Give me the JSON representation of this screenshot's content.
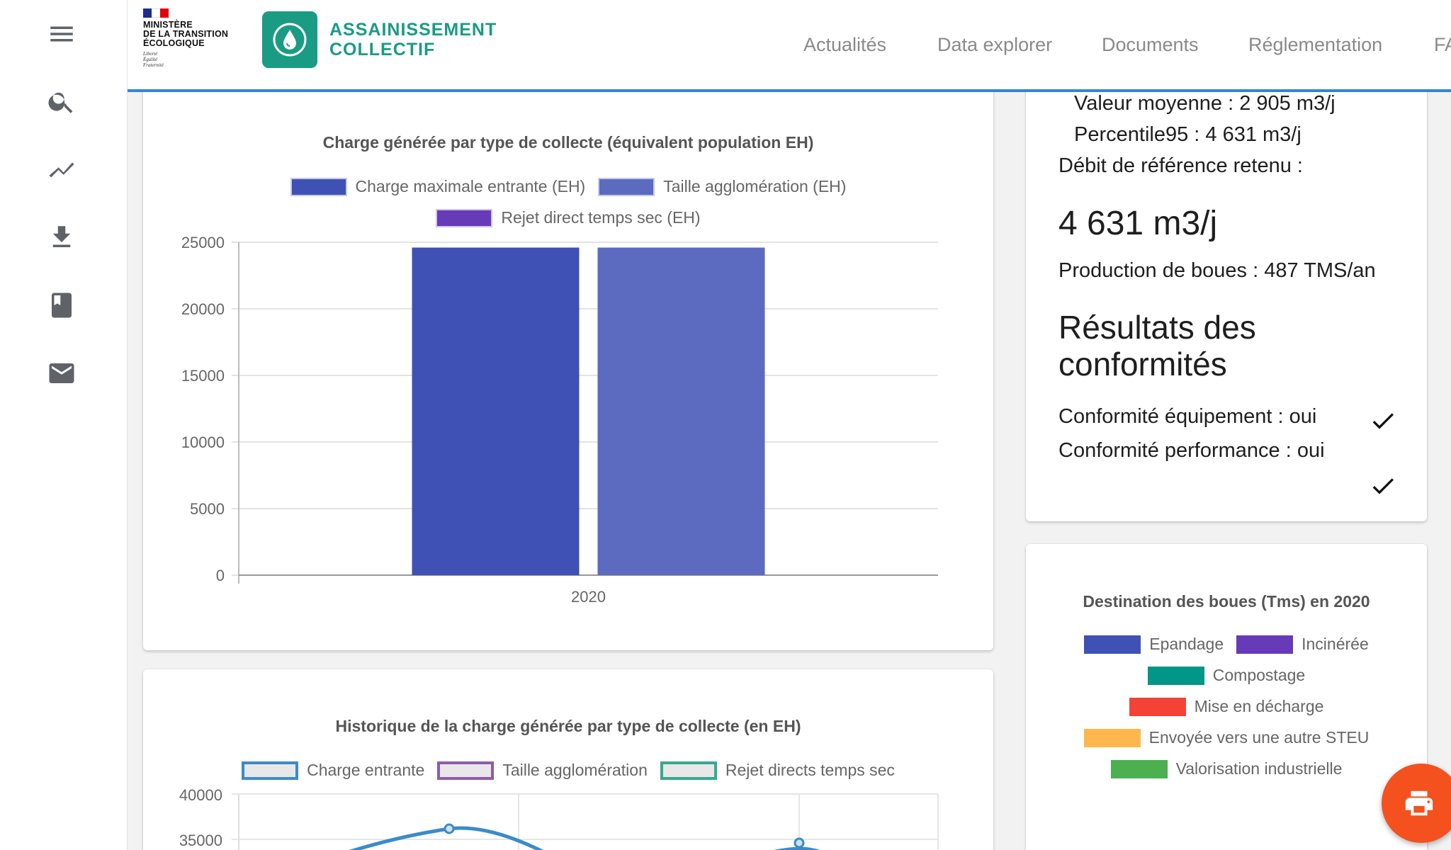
{
  "sidebar": {
    "items": [
      {
        "name": "menu",
        "icon": "menu-icon"
      },
      {
        "name": "search",
        "icon": "search-icon"
      },
      {
        "name": "trend",
        "icon": "trending-up-icon"
      },
      {
        "name": "download",
        "icon": "download-icon"
      },
      {
        "name": "book",
        "icon": "book-icon"
      },
      {
        "name": "mail",
        "icon": "mail-icon"
      }
    ]
  },
  "header": {
    "ministry_lines": [
      "MINISTÈRE",
      "DE LA TRANSITION",
      "ÉCOLOGIQUE"
    ],
    "motto": [
      "Liberté",
      "Égalité",
      "Fraternité"
    ],
    "brand_lines": [
      "ASSAINISSEMENT",
      "COLLECTIF"
    ],
    "nav": [
      "Actualités",
      "Data explorer",
      "Documents",
      "Réglementation",
      "FAQ"
    ]
  },
  "colors": {
    "brand_green": "#1a9b84",
    "header_rule": "#2f86d6",
    "fab": "#f4511e"
  },
  "chart_charge": {
    "chart_data": {
      "type": "bar",
      "title": "Charge générée par type de collecte (équivalent population EH)",
      "categories": [
        "2020"
      ],
      "series": [
        {
          "name": "Charge maximale entrante (EH)",
          "color": "#3f51b5",
          "values": [
            24600
          ]
        },
        {
          "name": "Taille agglomération (EH)",
          "color": "#5c6bc0",
          "values": [
            24600
          ]
        },
        {
          "name": "Rejet direct temps sec (EH)",
          "color": "#673ab7",
          "values": [
            0
          ]
        }
      ],
      "yticks": [
        "25000",
        "20000",
        "15000",
        "10000",
        "5000",
        "0"
      ],
      "ylim": [
        0,
        25000
      ],
      "grid": true,
      "legend": "top"
    }
  },
  "chart_hist": {
    "chart_data": {
      "type": "line",
      "title": "Historique de la charge générée par type de collecte (en EH)",
      "series": [
        {
          "name": "Charge entrante",
          "color": "#3b8bc9"
        },
        {
          "name": "Taille agglomération",
          "color": "#8e5ca8"
        },
        {
          "name": "Rejet directs temps sec",
          "color": "#38a88f"
        }
      ],
      "yticks": [
        "40000",
        "35000"
      ],
      "legend": "top"
    }
  },
  "debit": {
    "valeur_moyenne": "Valeur moyenne : 2 905 m3/j",
    "percentile": "Percentile95 : 4 631 m3/j",
    "debit_label": "Débit de référence retenu :",
    "debit_value": "4 631 m3/j",
    "production": "Production de boues : 487 TMS/an",
    "resultats_title_1": "Résultats des",
    "resultats_title_2": "conformités",
    "conf_equipement": "Conformité équipement : oui",
    "conf_performance": "Conformité performance : oui"
  },
  "boues": {
    "title": "Destination des boues (Tms) en 2020",
    "legend": [
      {
        "label": "Epandage",
        "color": "#3f51b5"
      },
      {
        "label": "Incinérée",
        "color": "#673ab7"
      },
      {
        "label": "Compostage",
        "color": "#009688"
      },
      {
        "label": "Mise en décharge",
        "color": "#f44336"
      },
      {
        "label": "Envoyée vers une autre STEU",
        "color": "#ffb74d"
      },
      {
        "label": "Valorisation industrielle",
        "color": "#4caf50"
      }
    ]
  }
}
